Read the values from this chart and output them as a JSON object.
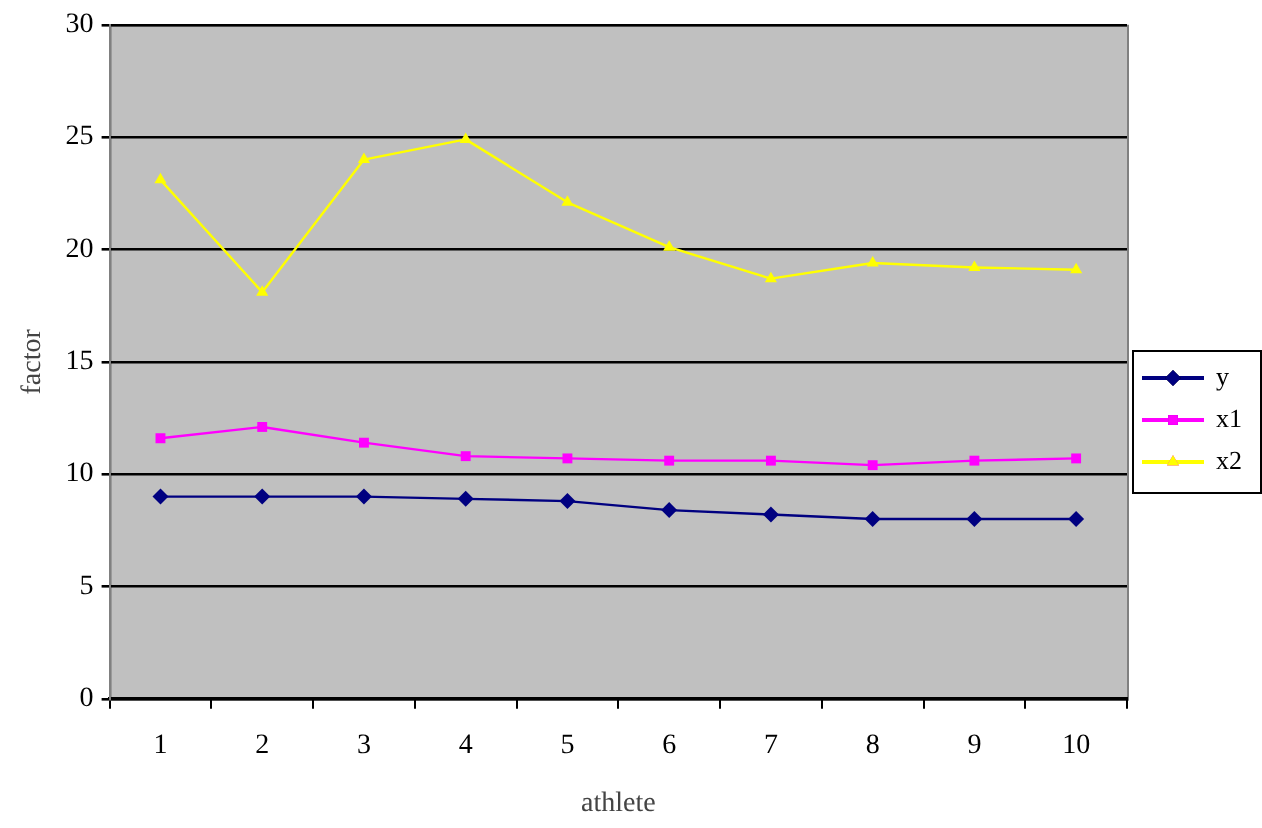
{
  "chart_data": {
    "type": "line",
    "xlabel": "athlete",
    "ylabel": "factor",
    "categories": [
      "1",
      "2",
      "3",
      "4",
      "5",
      "6",
      "7",
      "8",
      "9",
      "10"
    ],
    "series": [
      {
        "name": "y",
        "color": "#000080",
        "marker": "diamond",
        "values": [
          9.0,
          9.0,
          9.0,
          8.9,
          8.8,
          8.4,
          8.2,
          8.0,
          8.0,
          8.0
        ]
      },
      {
        "name": "x1",
        "color": "#ff00ff",
        "marker": "square",
        "values": [
          11.6,
          12.1,
          11.4,
          10.8,
          10.7,
          10.6,
          10.6,
          10.4,
          10.6,
          10.7
        ]
      },
      {
        "name": "x2",
        "color": "#ffff00",
        "marker": "triangle",
        "values": [
          23.1,
          18.1,
          24.0,
          24.9,
          22.1,
          20.1,
          18.7,
          19.4,
          19.2,
          19.1
        ]
      }
    ],
    "ylim": [
      0,
      30
    ],
    "yticks": [
      0,
      5,
      10,
      15,
      20,
      25,
      30
    ],
    "grid": "y",
    "legend": "right"
  }
}
